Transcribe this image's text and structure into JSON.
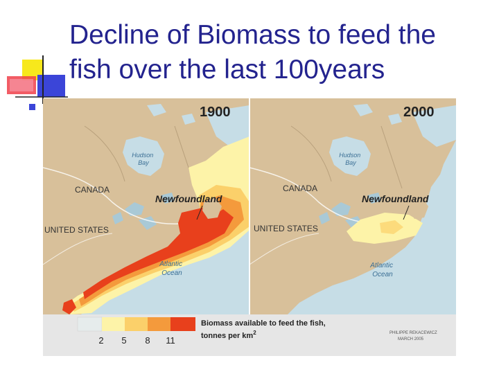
{
  "slide": {
    "title_line1": "Decline of Biomass to feed the",
    "title_line2": "fish over the last 100years"
  },
  "maps": [
    {
      "year": "1900",
      "labels": {
        "hudson": [
          "Hudson",
          "Bay"
        ],
        "canada": "CANADA",
        "us": "UNITED STATES",
        "newfoundland": "Newfoundland",
        "atlantic": [
          "Atlantic",
          "Ocean"
        ]
      }
    },
    {
      "year": "2000",
      "labels": {
        "hudson": [
          "Hudson",
          "Bay"
        ],
        "canada": "CANADA",
        "us": "UNITED STATES",
        "newfoundland": "Newfoundland",
        "atlantic": [
          "Atlantic",
          "Ocean"
        ]
      }
    }
  ],
  "legend": {
    "title_line1": "Biomass available to feed the fish,",
    "title_line2": "tonnes per km",
    "title_sup": "2",
    "ticks": [
      "2",
      "5",
      "8",
      "11"
    ],
    "colors": [
      "#e6ecec",
      "#fdf3a8",
      "#fbd06a",
      "#f49a3c",
      "#e8401c"
    ]
  },
  "credit": {
    "line1": "PHILIPPE REKACEWICZ",
    "line2": "MARCH 2005"
  },
  "colors": {
    "title": "#23238e",
    "land": "#d8c09a",
    "ocean": "#c6dde6",
    "lake": "#a9c9d6"
  }
}
